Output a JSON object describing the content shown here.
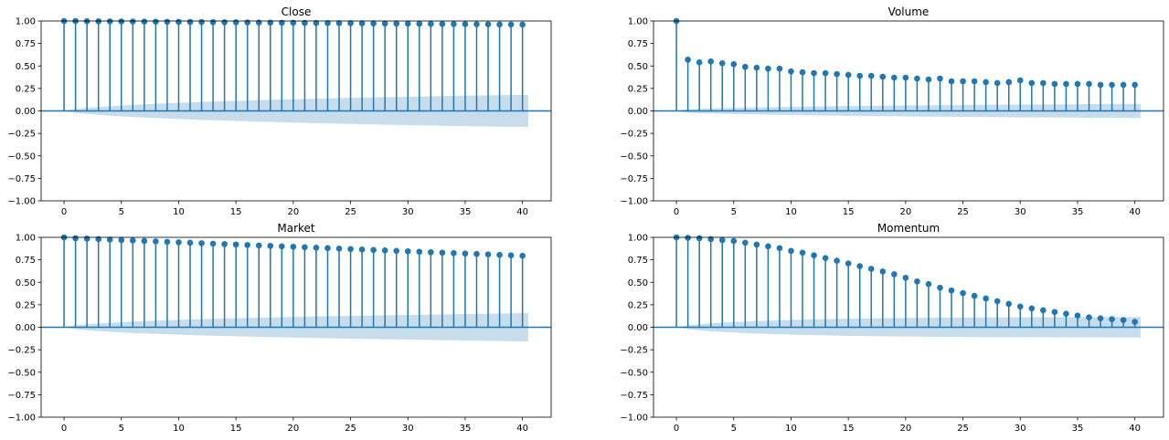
{
  "figure": {
    "background": "#ffffff"
  },
  "style": {
    "stem_color": "#1f77b4",
    "marker_color": "#1f77b4",
    "band_color": "#1f77b4",
    "band_alpha": 0.25,
    "zero_line_color": "#1f77b4"
  },
  "chart_data": [
    {
      "type": "stem",
      "title": "Close",
      "xlim": [
        -2,
        42.5
      ],
      "ylim": [
        -1.0,
        1.0
      ],
      "xticks": [
        0,
        5,
        10,
        15,
        20,
        25,
        30,
        35,
        40
      ],
      "yticks": [
        -1.0,
        -0.75,
        -0.5,
        -0.25,
        0.0,
        0.25,
        0.5,
        0.75,
        1.0
      ],
      "ytick_labels": [
        "−1.00",
        "−0.75",
        "−0.50",
        "−0.25",
        "0.00",
        "0.25",
        "0.50",
        "0.75",
        "1.00"
      ],
      "lags": [
        0,
        1,
        2,
        3,
        4,
        5,
        6,
        7,
        8,
        9,
        10,
        11,
        12,
        13,
        14,
        15,
        16,
        17,
        18,
        19,
        20,
        21,
        22,
        23,
        24,
        25,
        26,
        27,
        28,
        29,
        30,
        31,
        32,
        33,
        34,
        35,
        36,
        37,
        38,
        39,
        40
      ],
      "values": [
        1.0,
        0.999,
        0.998,
        0.997,
        0.996,
        0.995,
        0.994,
        0.993,
        0.992,
        0.991,
        0.99,
        0.989,
        0.988,
        0.987,
        0.986,
        0.985,
        0.984,
        0.983,
        0.982,
        0.981,
        0.98,
        0.979,
        0.978,
        0.977,
        0.976,
        0.975,
        0.974,
        0.973,
        0.972,
        0.971,
        0.97,
        0.969,
        0.968,
        0.967,
        0.966,
        0.965,
        0.964,
        0.963,
        0.962,
        0.961,
        0.96
      ],
      "conf_upper": [
        0.0,
        0.02,
        0.033,
        0.043,
        0.052,
        0.06,
        0.067,
        0.073,
        0.079,
        0.085,
        0.09,
        0.095,
        0.1,
        0.104,
        0.108,
        0.112,
        0.116,
        0.12,
        0.123,
        0.127,
        0.13,
        0.133,
        0.136,
        0.139,
        0.142,
        0.145,
        0.148,
        0.15,
        0.153,
        0.155,
        0.158,
        0.16,
        0.162,
        0.165,
        0.167,
        0.169,
        0.171,
        0.173,
        0.175,
        0.177,
        0.179
      ]
    },
    {
      "type": "stem",
      "title": "Volume",
      "xlim": [
        -2,
        42.5
      ],
      "ylim": [
        -1.0,
        1.0
      ],
      "xticks": [
        0,
        5,
        10,
        15,
        20,
        25,
        30,
        35,
        40
      ],
      "yticks": [
        -1.0,
        -0.75,
        -0.5,
        -0.25,
        0.0,
        0.25,
        0.5,
        0.75,
        1.0
      ],
      "ytick_labels": [
        "−1.00",
        "−0.75",
        "−0.50",
        "−0.25",
        "0.00",
        "0.25",
        "0.50",
        "0.75",
        "1.00"
      ],
      "lags": [
        0,
        1,
        2,
        3,
        4,
        5,
        6,
        7,
        8,
        9,
        10,
        11,
        12,
        13,
        14,
        15,
        16,
        17,
        18,
        19,
        20,
        21,
        22,
        23,
        24,
        25,
        26,
        27,
        28,
        29,
        30,
        31,
        32,
        33,
        34,
        35,
        36,
        37,
        38,
        39,
        40
      ],
      "values": [
        1.0,
        0.57,
        0.54,
        0.55,
        0.53,
        0.52,
        0.49,
        0.48,
        0.47,
        0.47,
        0.44,
        0.43,
        0.42,
        0.42,
        0.41,
        0.4,
        0.39,
        0.39,
        0.38,
        0.37,
        0.37,
        0.36,
        0.35,
        0.36,
        0.33,
        0.33,
        0.33,
        0.32,
        0.31,
        0.32,
        0.34,
        0.31,
        0.31,
        0.3,
        0.3,
        0.3,
        0.3,
        0.29,
        0.29,
        0.29,
        0.29
      ],
      "conf_upper": [
        0.0,
        0.02,
        0.024,
        0.028,
        0.031,
        0.034,
        0.037,
        0.039,
        0.041,
        0.043,
        0.045,
        0.047,
        0.049,
        0.051,
        0.052,
        0.054,
        0.055,
        0.057,
        0.058,
        0.059,
        0.061,
        0.062,
        0.063,
        0.064,
        0.065,
        0.066,
        0.067,
        0.068,
        0.069,
        0.07,
        0.071,
        0.072,
        0.072,
        0.073,
        0.074,
        0.075,
        0.076,
        0.076,
        0.077,
        0.078,
        0.079
      ]
    },
    {
      "type": "stem",
      "title": "Market",
      "xlim": [
        -2,
        42.5
      ],
      "ylim": [
        -1.0,
        1.0
      ],
      "xticks": [
        0,
        5,
        10,
        15,
        20,
        25,
        30,
        35,
        40
      ],
      "yticks": [
        -1.0,
        -0.75,
        -0.5,
        -0.25,
        0.0,
        0.25,
        0.5,
        0.75,
        1.0
      ],
      "ytick_labels": [
        "−1.00",
        "−0.75",
        "−0.50",
        "−0.25",
        "0.00",
        "0.25",
        "0.50",
        "0.75",
        "1.00"
      ],
      "lags": [
        0,
        1,
        2,
        3,
        4,
        5,
        6,
        7,
        8,
        9,
        10,
        11,
        12,
        13,
        14,
        15,
        16,
        17,
        18,
        19,
        20,
        21,
        22,
        23,
        24,
        25,
        26,
        27,
        28,
        29,
        30,
        31,
        32,
        33,
        34,
        35,
        36,
        37,
        38,
        39,
        40
      ],
      "values": [
        1.0,
        0.99,
        0.985,
        0.98,
        0.975,
        0.97,
        0.965,
        0.96,
        0.955,
        0.95,
        0.945,
        0.94,
        0.935,
        0.93,
        0.925,
        0.92,
        0.915,
        0.91,
        0.905,
        0.9,
        0.895,
        0.89,
        0.885,
        0.88,
        0.875,
        0.87,
        0.865,
        0.86,
        0.855,
        0.85,
        0.845,
        0.84,
        0.835,
        0.83,
        0.825,
        0.82,
        0.815,
        0.81,
        0.805,
        0.8,
        0.795
      ],
      "conf_upper": [
        0.0,
        0.02,
        0.033,
        0.042,
        0.05,
        0.057,
        0.063,
        0.068,
        0.073,
        0.078,
        0.082,
        0.086,
        0.09,
        0.094,
        0.097,
        0.1,
        0.103,
        0.106,
        0.109,
        0.112,
        0.115,
        0.117,
        0.12,
        0.122,
        0.124,
        0.127,
        0.129,
        0.131,
        0.133,
        0.135,
        0.137,
        0.139,
        0.141,
        0.143,
        0.145,
        0.147,
        0.149,
        0.151,
        0.153,
        0.155,
        0.157
      ]
    },
    {
      "type": "stem",
      "title": "Momentum",
      "xlim": [
        -2,
        42.5
      ],
      "ylim": [
        -1.0,
        1.0
      ],
      "xticks": [
        0,
        5,
        10,
        15,
        20,
        25,
        30,
        35,
        40
      ],
      "yticks": [
        -1.0,
        -0.75,
        -0.5,
        -0.25,
        0.0,
        0.25,
        0.5,
        0.75,
        1.0
      ],
      "ytick_labels": [
        "−1.00",
        "−0.75",
        "−0.50",
        "−0.25",
        "0.00",
        "0.25",
        "0.50",
        "0.75",
        "1.00"
      ],
      "lags": [
        0,
        1,
        2,
        3,
        4,
        5,
        6,
        7,
        8,
        9,
        10,
        11,
        12,
        13,
        14,
        15,
        16,
        17,
        18,
        19,
        20,
        21,
        22,
        23,
        24,
        25,
        26,
        27,
        28,
        29,
        30,
        31,
        32,
        33,
        34,
        35,
        36,
        37,
        38,
        39,
        40
      ],
      "values": [
        1.0,
        0.995,
        0.99,
        0.98,
        0.97,
        0.96,
        0.94,
        0.92,
        0.9,
        0.88,
        0.85,
        0.83,
        0.8,
        0.77,
        0.74,
        0.71,
        0.68,
        0.65,
        0.62,
        0.59,
        0.55,
        0.51,
        0.48,
        0.44,
        0.41,
        0.38,
        0.35,
        0.32,
        0.29,
        0.26,
        0.23,
        0.21,
        0.19,
        0.17,
        0.15,
        0.13,
        0.11,
        0.1,
        0.09,
        0.08,
        0.06
      ],
      "conf_upper": [
        0.0,
        0.02,
        0.034,
        0.044,
        0.052,
        0.059,
        0.065,
        0.07,
        0.074,
        0.078,
        0.082,
        0.085,
        0.088,
        0.09,
        0.093,
        0.095,
        0.097,
        0.099,
        0.1,
        0.102,
        0.103,
        0.104,
        0.105,
        0.106,
        0.107,
        0.108,
        0.109,
        0.11,
        0.11,
        0.111,
        0.111,
        0.112,
        0.112,
        0.112,
        0.113,
        0.113,
        0.113,
        0.113,
        0.114,
        0.114,
        0.114
      ]
    }
  ]
}
